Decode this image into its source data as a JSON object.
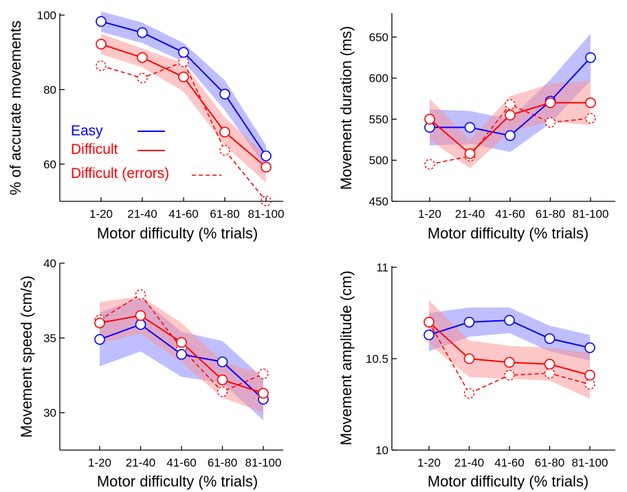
{
  "colors": {
    "easy": "#0000ff",
    "difficult": "#ff0000",
    "easy_band": "#8080ff",
    "difficult_band": "#ff9090"
  },
  "legend": {
    "placement": "inside-left of top-left panel",
    "entries": [
      {
        "label": "Easy",
        "series": "easy",
        "line": "solid"
      },
      {
        "label": "Difficult",
        "series": "difficult",
        "line": "solid"
      },
      {
        "label": "Difficult (errors)",
        "series": "difficult_errors",
        "line": "dashed"
      }
    ]
  },
  "chart_data": [
    {
      "type": "line",
      "id": "accuracy",
      "xlabel": "Motor difficulty (% trials)",
      "ylabel": "% of accurate movements",
      "categories": [
        "1-20",
        "21-40",
        "41-60",
        "61-80",
        "81-100"
      ],
      "ylim": [
        50,
        100
      ],
      "yticks": [
        60,
        80,
        100
      ],
      "yticklabels": [
        "60",
        "80",
        "100"
      ],
      "grid": false,
      "series": [
        {
          "name": "Easy",
          "key": "easy",
          "values": [
            98.3,
            95.3,
            90.0,
            78.8,
            62.2
          ],
          "band": [
            [
              95.5,
              101.0
            ],
            [
              92.5,
              98.0
            ],
            [
              87.5,
              92.5
            ],
            [
              74.5,
              82.5
            ],
            [
              59.0,
              65.0
            ]
          ]
        },
        {
          "name": "Difficult",
          "key": "difficult",
          "values": [
            92.2,
            88.6,
            83.4,
            68.6,
            59.2
          ],
          "band": [
            [
              89.5,
              95.0
            ],
            [
              86.0,
              91.0
            ],
            [
              79.5,
              87.0
            ],
            [
              65.0,
              72.5
            ],
            [
              55.0,
              62.5
            ]
          ]
        },
        {
          "name": "Difficult (errors)",
          "key": "difficult_errors",
          "values": [
            86.4,
            83.1,
            87.5,
            63.7,
            50.1
          ],
          "band": null
        }
      ]
    },
    {
      "type": "line",
      "id": "duration",
      "xlabel": "Motor difficulty (% trials)",
      "ylabel": "Movement duration (ms)",
      "categories": [
        "1-20",
        "21-40",
        "41-60",
        "61-80",
        "81-100"
      ],
      "ylim": [
        450,
        675
      ],
      "yticks": [
        450,
        500,
        550,
        600,
        650
      ],
      "yticklabels": [
        "450",
        "500",
        "550",
        "600",
        "650"
      ],
      "grid": false,
      "series": [
        {
          "name": "Easy",
          "key": "easy",
          "values": [
            540,
            540,
            530,
            572,
            625
          ],
          "band": [
            [
              518,
              562
            ],
            [
              520,
              560
            ],
            [
              510,
              550
            ],
            [
              545,
              598
            ],
            [
              597,
              654
            ]
          ]
        },
        {
          "name": "Difficult",
          "key": "difficult",
          "values": [
            550,
            508,
            555,
            570,
            570
          ],
          "band": [
            [
              525,
              575
            ],
            [
              490,
              525
            ],
            [
              535,
              578
            ],
            [
              547,
              593
            ],
            [
              543,
              597
            ]
          ]
        },
        {
          "name": "Difficult (errors)",
          "key": "difficult_errors",
          "values": [
            495,
            505,
            568,
            546,
            551
          ],
          "band": null
        }
      ]
    },
    {
      "type": "line",
      "id": "speed",
      "xlabel": "Motor difficulty (% trials)",
      "ylabel": "Movement speed (cm/s)",
      "categories": [
        "1-20",
        "21-40",
        "41-60",
        "61-80",
        "81-100"
      ],
      "ylim": [
        27.5,
        40
      ],
      "yticks": [
        30,
        35,
        40
      ],
      "yticklabels": [
        "30",
        "35",
        "40"
      ],
      "grid": false,
      "series": [
        {
          "name": "Easy",
          "key": "easy",
          "values": [
            34.9,
            35.9,
            33.9,
            33.4,
            30.9
          ],
          "band": [
            [
              33.1,
              36.7
            ],
            [
              34.1,
              37.7
            ],
            [
              32.4,
              35.4
            ],
            [
              32.0,
              34.8
            ],
            [
              29.5,
              32.3
            ]
          ]
        },
        {
          "name": "Difficult",
          "key": "difficult",
          "values": [
            36.0,
            36.5,
            34.7,
            32.2,
            31.3
          ],
          "band": [
            [
              34.6,
              37.4
            ],
            [
              35.3,
              37.8
            ],
            [
              33.4,
              36.0
            ],
            [
              31.0,
              33.4
            ],
            [
              30.0,
              32.6
            ]
          ]
        },
        {
          "name": "Difficult (errors)",
          "key": "difficult_errors",
          "values": [
            36.2,
            37.9,
            34.3,
            31.4,
            32.6
          ],
          "band": null
        }
      ]
    },
    {
      "type": "line",
      "id": "amplitude",
      "xlabel": "Motor difficulty (% trials)",
      "ylabel": "Movement amplitude (cm)",
      "categories": [
        "1-20",
        "21-40",
        "41-60",
        "61-80",
        "81-100"
      ],
      "ylim": [
        10,
        11
      ],
      "yticks": [
        10,
        10.5,
        11
      ],
      "yticklabels": [
        "10",
        "10.5",
        "11"
      ],
      "grid": false,
      "series": [
        {
          "name": "Easy",
          "key": "easy",
          "values": [
            10.63,
            10.7,
            10.71,
            10.61,
            10.56
          ],
          "band": [
            [
              10.54,
              10.75
            ],
            [
              10.62,
              10.78
            ],
            [
              10.64,
              10.78
            ],
            [
              10.54,
              10.68
            ],
            [
              10.49,
              10.63
            ]
          ]
        },
        {
          "name": "Difficult",
          "key": "difficult",
          "values": [
            10.7,
            10.5,
            10.48,
            10.47,
            10.41
          ],
          "band": [
            [
              10.58,
              10.82
            ],
            [
              10.4,
              10.6
            ],
            [
              10.39,
              10.57
            ],
            [
              10.38,
              10.56
            ],
            [
              10.28,
              10.53
            ]
          ]
        },
        {
          "name": "Difficult (errors)",
          "key": "difficult_errors",
          "values": [
            10.7,
            10.31,
            10.41,
            10.42,
            10.36
          ],
          "band": null
        }
      ]
    }
  ]
}
